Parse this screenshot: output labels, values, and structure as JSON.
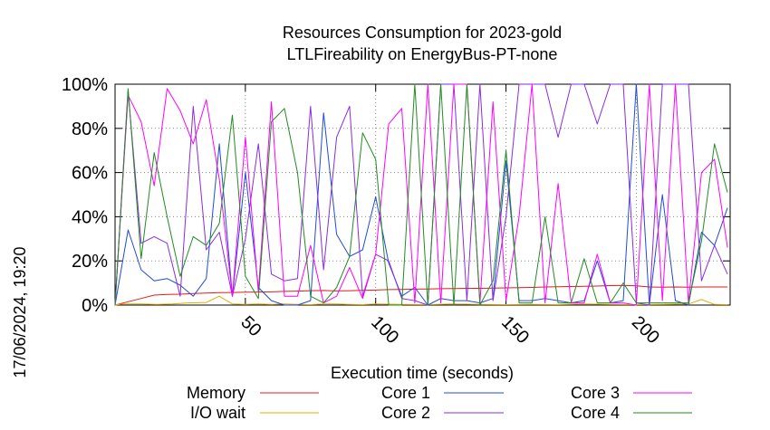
{
  "chart_data": {
    "type": "line",
    "title_line1": "Resources Consumption for 2023-gold",
    "title_line2": "LTLFireability on EnergyBus-PT-none",
    "xlabel": "Execution time (seconds)",
    "ylabel": "",
    "timestamp": "17/06/2024, 19:20",
    "xlim": [
      0,
      236
    ],
    "ylim": [
      0,
      100
    ],
    "x_ticks": [
      50,
      100,
      150,
      200
    ],
    "y_ticks": [
      {
        "value": 0,
        "label": "0%"
      },
      {
        "value": 20,
        "label": "20%"
      },
      {
        "value": 40,
        "label": "40%"
      },
      {
        "value": 60,
        "label": "60%"
      },
      {
        "value": 80,
        "label": "80%"
      },
      {
        "value": 100,
        "label": "100%"
      }
    ],
    "grid": true,
    "legend_placement": "bottom",
    "series": [
      {
        "name": "Memory",
        "color": "#e41a1c",
        "x": [
          0,
          5,
          10,
          15,
          20,
          25,
          30,
          35,
          40,
          45,
          50,
          55,
          60,
          65,
          70,
          75,
          80,
          85,
          90,
          95,
          100,
          105,
          110,
          115,
          120,
          125,
          130,
          135,
          140,
          145,
          150,
          155,
          160,
          165,
          170,
          175,
          180,
          185,
          190,
          195,
          200,
          205,
          210,
          215,
          220,
          225,
          230,
          235
        ],
        "values": [
          0,
          1.5,
          3,
          4.5,
          4.8,
          4.9,
          5.2,
          5.4,
          5.6,
          5.7,
          5.8,
          5.9,
          6,
          6.2,
          6.3,
          6.5,
          6.6,
          6.4,
          6.5,
          6.7,
          6.8,
          7,
          7.1,
          7.2,
          7.3,
          7.4,
          7.5,
          7.6,
          7.6,
          7.7,
          7.8,
          7.9,
          8,
          8.2,
          8.3,
          8.4,
          8.5,
          8.6,
          8.8,
          8.9,
          8.7,
          8.2,
          8.1,
          8.2,
          8.1,
          8.2,
          8.2,
          8.2
        ]
      },
      {
        "name": "I/O wait",
        "color": "#e6ab02",
        "x": [
          0,
          3,
          10,
          16,
          22,
          28,
          35,
          40,
          45,
          50,
          55,
          60,
          65,
          70,
          75,
          80,
          85,
          90,
          95,
          100,
          110,
          120,
          130,
          140,
          150,
          160,
          170,
          180,
          190,
          200,
          210,
          220,
          225,
          230,
          235
        ],
        "values": [
          0,
          0.5,
          0.5,
          0.3,
          0.5,
          1,
          1.2,
          4,
          0.5,
          0.3,
          0.5,
          0.3,
          0.5,
          0.3,
          0.2,
          0.5,
          0.5,
          0.3,
          0.2,
          0.5,
          0.3,
          0.2,
          0.5,
          0.3,
          0.2,
          0.3,
          0.2,
          0.5,
          0.3,
          0.2,
          0.3,
          0.5,
          2.5,
          0.3,
          0.2
        ]
      },
      {
        "name": "Core 1",
        "color": "#1f4bd8",
        "x": [
          0,
          5,
          10,
          15,
          20,
          25,
          30,
          35,
          40,
          45,
          50,
          55,
          60,
          65,
          70,
          75,
          80,
          85,
          90,
          95,
          100,
          105,
          110,
          115,
          120,
          125,
          130,
          135,
          140,
          145,
          150,
          155,
          160,
          165,
          170,
          175,
          180,
          185,
          190,
          195,
          200,
          205,
          210,
          215,
          220,
          225,
          230,
          235
        ],
        "values": [
          0,
          34,
          16,
          11,
          12,
          9,
          4,
          12,
          73,
          4,
          60,
          8,
          2,
          0,
          0,
          2,
          87,
          32,
          22,
          25,
          49,
          19,
          4,
          8,
          0,
          3,
          2,
          2,
          1,
          3,
          65,
          2,
          2,
          3,
          2,
          1,
          2,
          20,
          1,
          2,
          100,
          0,
          50,
          2,
          0,
          33,
          27,
          44
        ]
      },
      {
        "name": "Core 2",
        "color": "#8a2be2",
        "x": [
          0,
          5,
          10,
          15,
          20,
          25,
          30,
          35,
          40,
          45,
          50,
          55,
          60,
          65,
          70,
          75,
          80,
          85,
          90,
          95,
          100,
          105,
          110,
          115,
          120,
          125,
          130,
          135,
          140,
          145,
          150,
          155,
          160,
          165,
          170,
          175,
          180,
          185,
          190,
          195,
          200,
          205,
          210,
          215,
          220,
          225,
          230,
          235
        ],
        "values": [
          0,
          97,
          28,
          31,
          28,
          4,
          90,
          25,
          33,
          4,
          30,
          73,
          14,
          11,
          12,
          90,
          16,
          76,
          90,
          4,
          23,
          20,
          3,
          2,
          0,
          100,
          100,
          2,
          100,
          2,
          40,
          100,
          100,
          100,
          76,
          100,
          100,
          82,
          100,
          100,
          1,
          0,
          100,
          100,
          100,
          11,
          27,
          14
        ]
      },
      {
        "name": "Core 3",
        "color": "#ff00ff",
        "x": [
          0,
          5,
          10,
          15,
          20,
          25,
          30,
          35,
          40,
          45,
          50,
          55,
          60,
          65,
          70,
          75,
          80,
          85,
          90,
          95,
          100,
          105,
          110,
          115,
          120,
          125,
          130,
          135,
          140,
          145,
          150,
          155,
          160,
          165,
          170,
          175,
          180,
          185,
          190,
          195,
          200,
          205,
          210,
          215,
          220,
          225,
          230,
          235
        ],
        "values": [
          0,
          95,
          83,
          54,
          98,
          88,
          73,
          93,
          57,
          4,
          76,
          6,
          92,
          4,
          4,
          27,
          1,
          4,
          17,
          3,
          23,
          82,
          89,
          1,
          100,
          1,
          100,
          100,
          1,
          92,
          2,
          40,
          100,
          1,
          55,
          1,
          1,
          23,
          1,
          1,
          0,
          100,
          2,
          100,
          1,
          60,
          66,
          26
        ]
      },
      {
        "name": "Core 4",
        "color": "#228b22",
        "x": [
          0,
          5,
          10,
          15,
          20,
          25,
          30,
          35,
          40,
          45,
          50,
          55,
          60,
          65,
          70,
          75,
          80,
          85,
          90,
          95,
          100,
          105,
          110,
          115,
          120,
          125,
          130,
          135,
          140,
          145,
          150,
          155,
          160,
          165,
          170,
          175,
          180,
          185,
          190,
          195,
          200,
          205,
          210,
          215,
          220,
          225,
          230,
          235
        ],
        "values": [
          0,
          98,
          21,
          69,
          40,
          13,
          31,
          27,
          37,
          86,
          13,
          3,
          83,
          89,
          60,
          4,
          1,
          8,
          22,
          78,
          66,
          0,
          0,
          100,
          0,
          100,
          0,
          100,
          0,
          11,
          70,
          1,
          1,
          40,
          1,
          1,
          21,
          1,
          1,
          10,
          1,
          1,
          1,
          1,
          1,
          29,
          73,
          51
        ]
      }
    ]
  }
}
